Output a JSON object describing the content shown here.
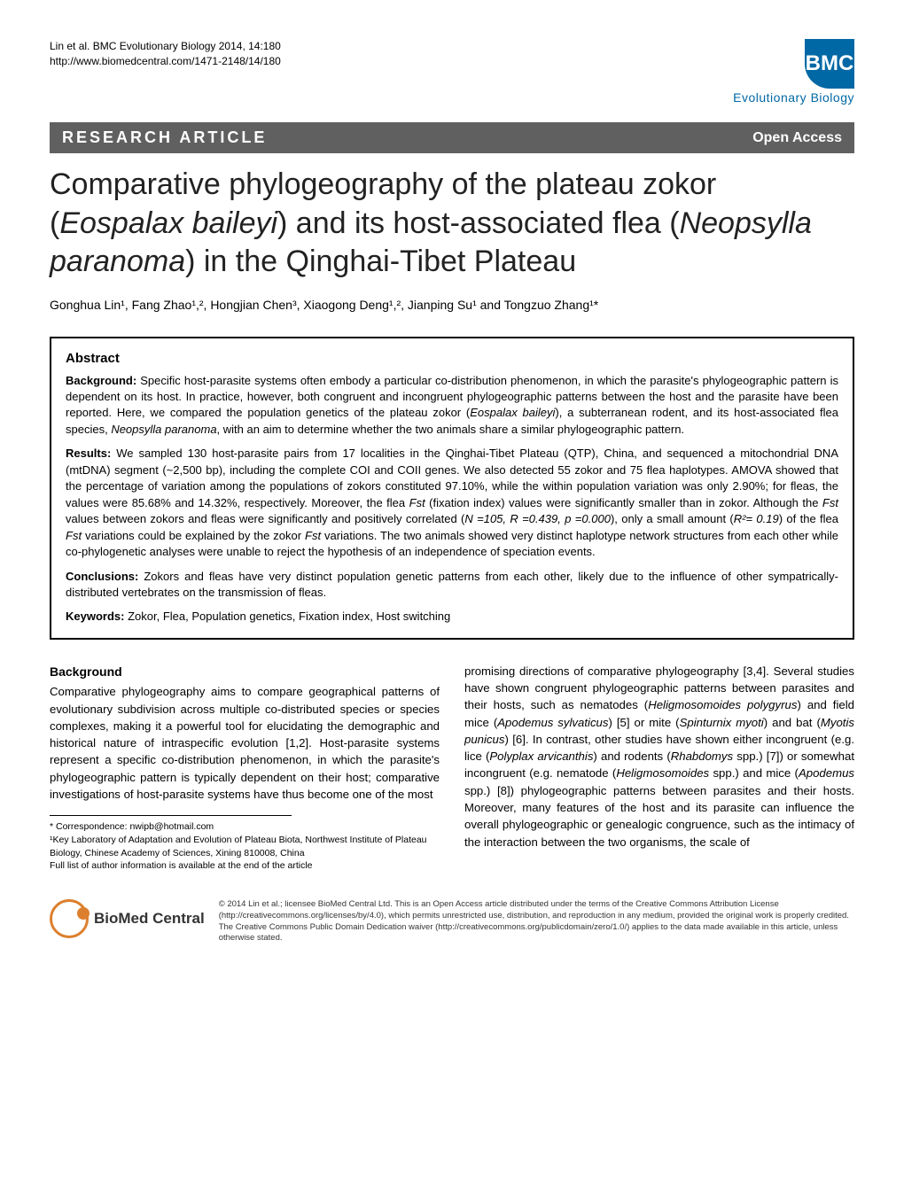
{
  "header": {
    "citation": "Lin et al. BMC Evolutionary Biology 2014, 14:180",
    "url": "http://www.biomedcentral.com/1471-2148/14/180",
    "logo_prefix": "BMC",
    "logo_text": "Evolutionary Biology"
  },
  "articleBar": {
    "type": "RESEARCH ARTICLE",
    "access": "Open Access"
  },
  "title": {
    "pre1": "Comparative phylogeography of the plateau zokor (",
    "sp1": "Eospalax baileyi",
    "mid1": ") and its host-associated flea (",
    "sp2": "Neopsylla paranoma",
    "post": ") in the Qinghai-Tibet Plateau"
  },
  "authors": "Gonghua Lin¹, Fang Zhao¹,², Hongjian Chen³, Xiaogong Deng¹,², Jianping Su¹ and Tongzuo Zhang¹*",
  "abstract": {
    "heading": "Abstract",
    "bg_label": "Background:",
    "bg_text": " Specific host-parasite systems often embody a particular co-distribution phenomenon, in which the parasite's phylogeographic pattern is dependent on its host. In practice, however, both congruent and incongruent phylogeographic patterns between the host and the parasite have been reported. Here, we compared the population genetics of the plateau zokor (",
    "bg_sp1": "Eospalax baileyi",
    "bg_mid": "), a subterranean rodent, and its host-associated flea species, ",
    "bg_sp2": "Neopsylla paranoma",
    "bg_end": ", with an aim to determine whether the two animals share a similar phylogeographic pattern.",
    "res_label": "Results:",
    "res_a": " We sampled 130 host-parasite pairs from 17 localities in the Qinghai-Tibet Plateau (QTP), China, and sequenced a mitochondrial DNA (mtDNA) segment (~2,500 bp), including the complete COI and COII genes. We also detected 55 zokor and 75 flea haplotypes. AMOVA showed that the percentage of variation among the populations of zokors constituted 97.10%, while the within population variation was only 2.90%; for fleas, the values were 85.68% and 14.32%, respectively. Moreover, the flea ",
    "res_fst1": "Fst",
    "res_b": " (fixation index) values were significantly smaller than in zokor. Although the ",
    "res_fst2": "Fst",
    "res_c": " values between zokors and fleas were significantly and positively correlated (",
    "res_stats": "N =105, R =0.439, p =0.000",
    "res_d": "), only a small amount (",
    "res_r2": "R²= 0.19",
    "res_e": ") of the flea ",
    "res_fst3": "Fst",
    "res_f": " variations could be explained by the zokor ",
    "res_fst4": "Fst",
    "res_g": " variations. The two animals showed very distinct haplotype network structures from each other while co-phylogenetic analyses were unable to reject the hypothesis of an independence of speciation events.",
    "con_label": "Conclusions:",
    "con_text": " Zokors and fleas have very distinct population genetic patterns from each other, likely due to the influence of other sympatrically-distributed vertebrates on the transmission of fleas.",
    "kw_label": "Keywords:",
    "kw_text": " Zokor, Flea, Population genetics, Fixation index, Host switching"
  },
  "body": {
    "bg_heading": "Background",
    "left_text": "Comparative phylogeography aims to compare geographical patterns of evolutionary subdivision across multiple co-distributed species or species complexes, making it a powerful tool for elucidating the demographic and historical nature of intraspecific evolution [1,2]. Host-parasite systems represent a specific co-distribution phenomenon, in which the parasite's phylogeographic pattern is typically dependent on their host; comparative investigations of host-parasite systems have thus become one of the most",
    "right_a": "promising directions of comparative phylogeography [3,4]. Several studies have shown congruent phylogeographic patterns between parasites and their hosts, such as nematodes (",
    "sp1": "Heligmosomoides polygyrus",
    "right_b": ") and field mice (",
    "sp2": "Apodemus sylvaticus",
    "right_c": ") [5] or mite (",
    "sp3": "Spinturnix myoti",
    "right_d": ") and bat (",
    "sp4": "Myotis punicus",
    "right_e": ") [6]. In contrast, other studies have shown either incongruent (e.g. lice (",
    "sp5": "Polyplax arvicanthis",
    "right_f": ") and rodents (",
    "sp6": "Rhabdomys",
    "right_g": " spp.) [7]) or somewhat incongruent (e.g. nematode (",
    "sp7": "Heligmosomoides",
    "right_h": " spp.) and mice (",
    "sp8": "Apodemus",
    "right_i": " spp.) [8]) phylogeographic patterns between parasites and their hosts. Moreover, many features of the host and its parasite can influence the overall phylogeographic or genealogic congruence, such as the intimacy of the interaction between the two organisms, the scale of"
  },
  "correspondence": {
    "line1": "* Correspondence: nwipb@hotmail.com",
    "line2": "¹Key Laboratory of Adaptation and Evolution of Plateau Biota, Northwest Institute of Plateau Biology, Chinese Academy of Sciences, Xining 810008, China",
    "line3": "Full list of author information is available at the end of the article"
  },
  "footer": {
    "logo_text": "BioMed Central",
    "copyright": "© 2014 Lin et al.; licensee BioMed Central Ltd. This is an Open Access article distributed under the terms of the Creative Commons Attribution License (http://creativecommons.org/licenses/by/4.0), which permits unrestricted use, distribution, and reproduction in any medium, provided the original work is properly credited. The Creative Commons Public Domain Dedication waiver (http://creativecommons.org/publicdomain/zero/1.0/) applies to the data made available in this article, unless otherwise stated."
  },
  "colors": {
    "bar_bg": "#606060",
    "bmc_blue": "#0068a5",
    "orange": "#dc7f2e"
  }
}
